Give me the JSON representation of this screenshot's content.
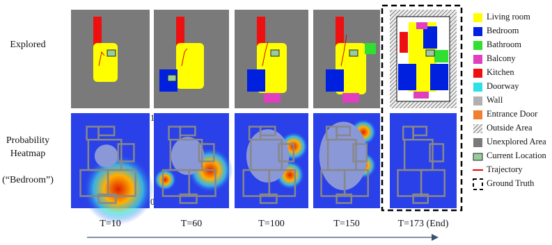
{
  "row_labels": {
    "explored": "Explored",
    "heatmap": [
      "Probability",
      "Heatmap"
    ],
    "target": "(“Bedroom”)"
  },
  "colorbar": {
    "top": "1",
    "bottom": "0"
  },
  "timesteps": [
    "T=10",
    "T=60",
    "T=100",
    "T=150",
    "T=173 (End)"
  ],
  "legend": [
    {
      "label": "Living room",
      "color": "#ffff00"
    },
    {
      "label": "Bedroom",
      "color": "#0020e0"
    },
    {
      "label": "Bathroom",
      "color": "#30e030"
    },
    {
      "label": "Balcony",
      "color": "#e040c0"
    },
    {
      "label": "Kitchen",
      "color": "#ee1010"
    },
    {
      "label": "Doorway",
      "color": "#30e0e8"
    },
    {
      "label": "Wall",
      "color": "#b0b0b0"
    },
    {
      "label": "Entrance Door",
      "color": "#f08030"
    },
    {
      "label": "Outside Area"
    },
    {
      "label": "Unexplored Area",
      "color": "#7a7a7a"
    },
    {
      "label": "Current Location"
    },
    {
      "label": "Trajectory"
    },
    {
      "label": "Ground Truth"
    }
  ]
}
